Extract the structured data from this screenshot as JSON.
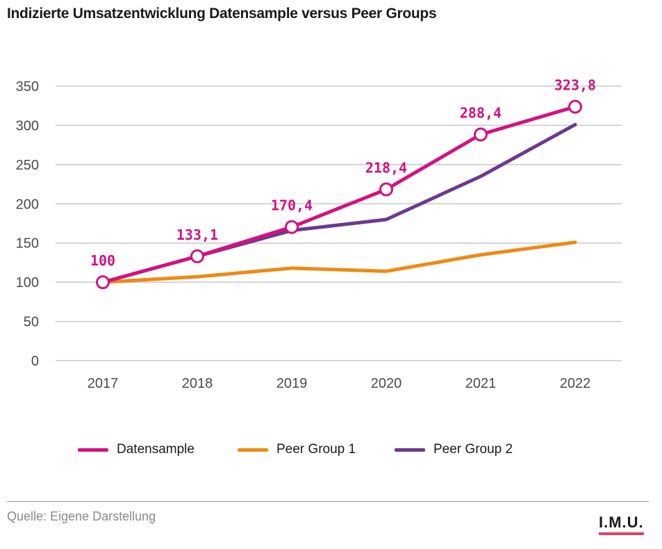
{
  "colors": {
    "datensample": "#d4117f",
    "peer1": "#ef8a12",
    "peer2": "#6b3a8e",
    "grid": "#c8c8c8",
    "axis_text": "#4a4a4a"
  },
  "chart_data": {
    "type": "line",
    "title": "Indizierte Umsatzentwicklung Datensample versus Peer Groups",
    "categories": [
      "2017",
      "2018",
      "2019",
      "2020",
      "2021",
      "2022"
    ],
    "ylim": [
      0,
      350
    ],
    "yticks": [
      0,
      50,
      100,
      150,
      200,
      250,
      300,
      350
    ],
    "grid": true,
    "legend_position": "bottom",
    "series": [
      {
        "name": "Datensample",
        "values": [
          100,
          133.1,
          170.4,
          218.4,
          288.4,
          323.8
        ],
        "labels": [
          "100",
          "133,1",
          "170,4",
          "218,4",
          "288,4",
          "323,8"
        ]
      },
      {
        "name": "Peer Group 1",
        "values": [
          100,
          107,
          118,
          114,
          135,
          151
        ]
      },
      {
        "name": "Peer Group 2",
        "values": [
          100,
          133,
          166,
          180,
          235,
          301
        ]
      }
    ]
  },
  "footer": {
    "source": "Quelle: Eigene Darstellung",
    "logo": "I.M.U."
  }
}
